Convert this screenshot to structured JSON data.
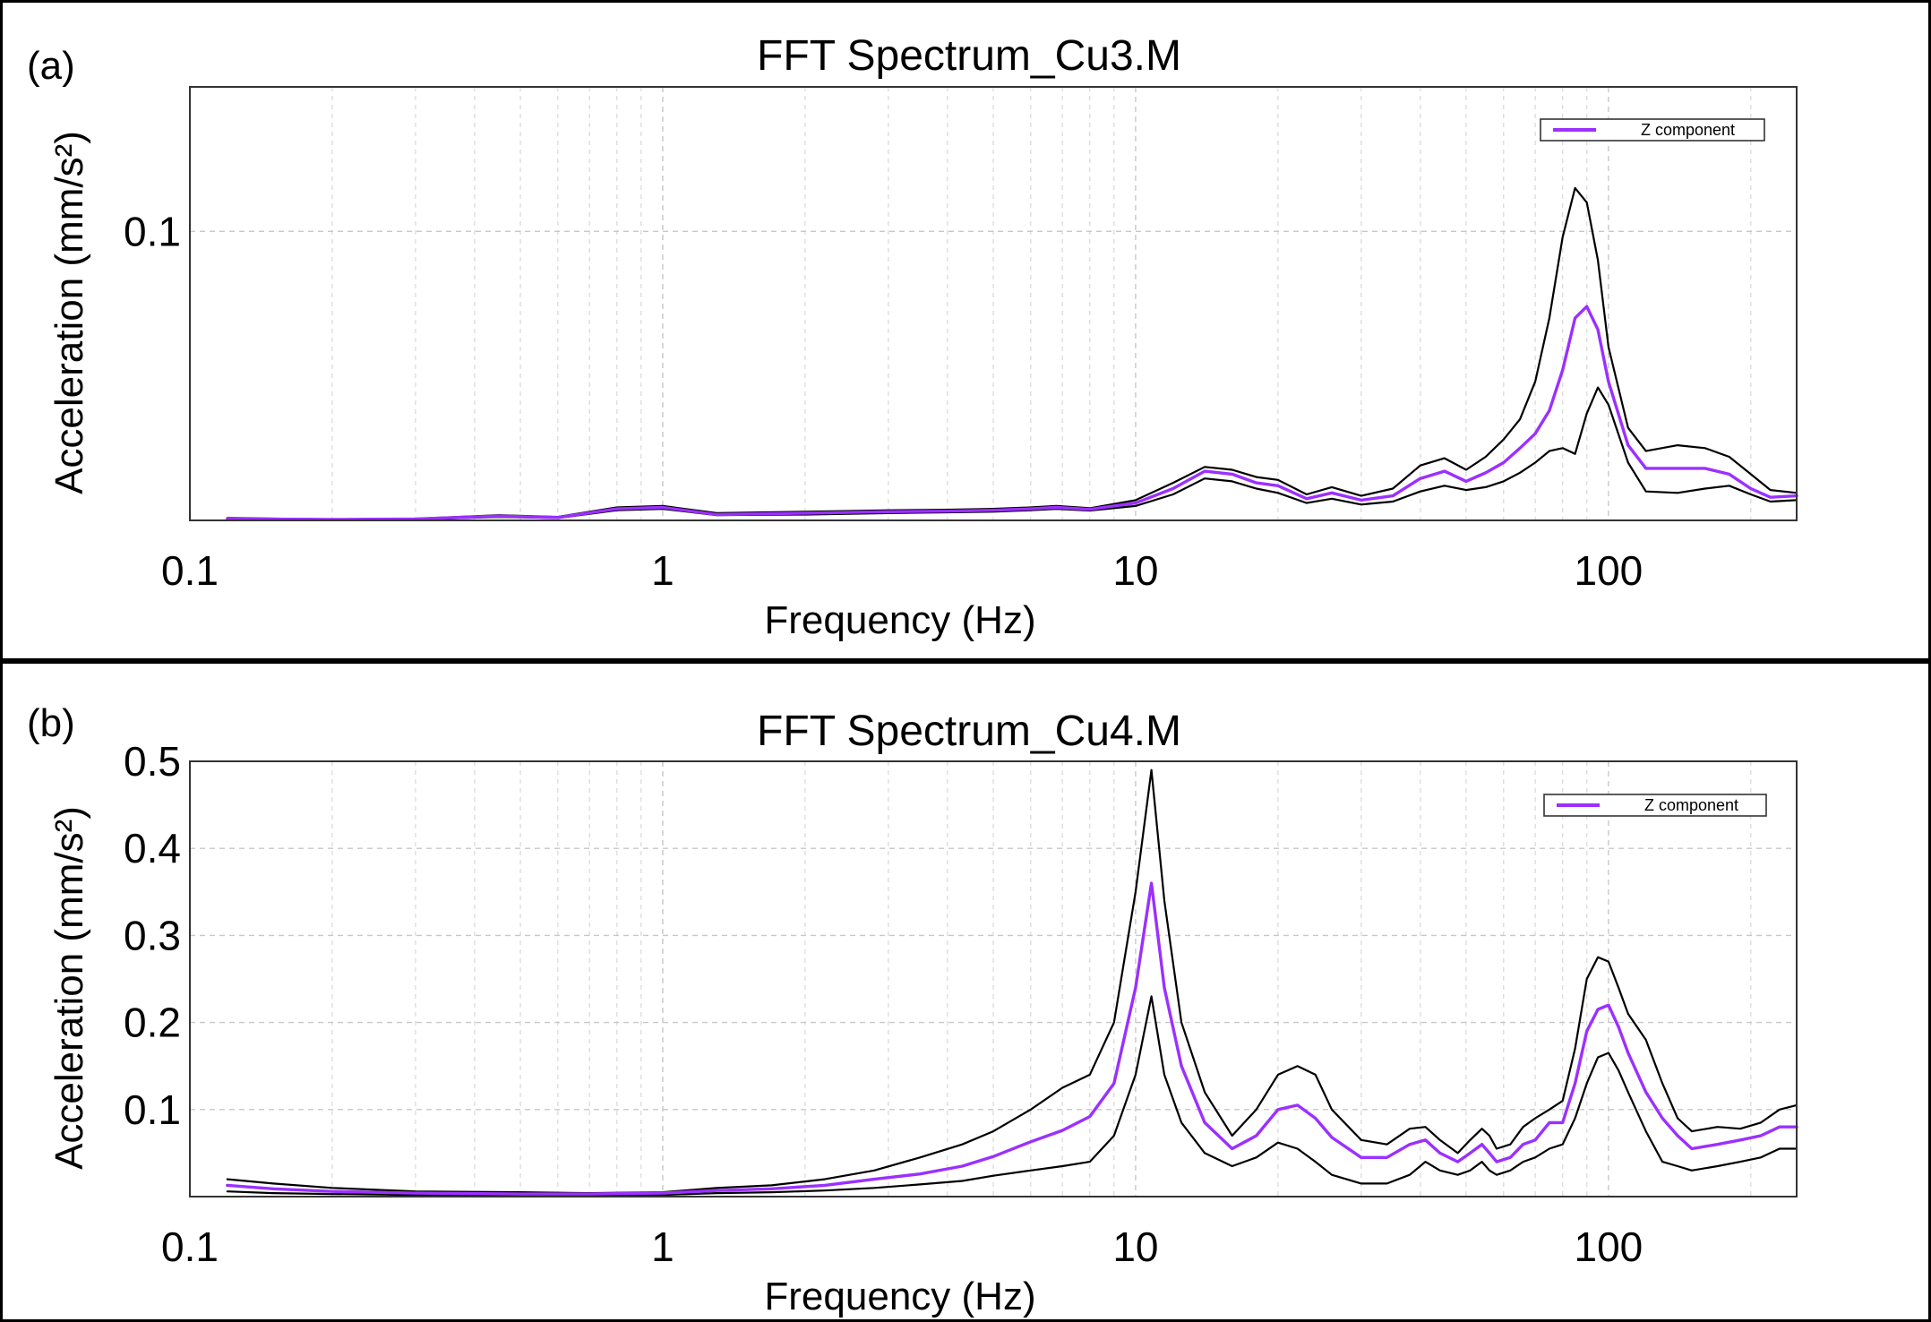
{
  "colors": {
    "mean": "#9b30ff",
    "bound": "#000000"
  },
  "chart_data": [
    {
      "type": "line",
      "panel_label": "(a)",
      "title": "FFT Spectrum_Cu3.M",
      "xlabel": "Frequency (Hz)",
      "ylabel": "Acceleration (mm/s²)",
      "xscale": "log",
      "xlim": [
        0.1,
        250
      ],
      "ylim": [
        0,
        0.15
      ],
      "xticks": [
        "0.1",
        "1",
        "10",
        "100"
      ],
      "yticks": [
        "0.1"
      ],
      "ytick_values": [
        0.1
      ],
      "legend": {
        "label": "Z component",
        "placement": "top-right"
      },
      "grid": true,
      "series": [
        {
          "name": "Z component",
          "role": "mean",
          "x": [
            0.12,
            0.2,
            0.3,
            0.45,
            0.6,
            0.8,
            1.0,
            1.3,
            2,
            3,
            4,
            5,
            6,
            6.8,
            8,
            10,
            12,
            14,
            16,
            18,
            20,
            23,
            26,
            30,
            35,
            40,
            45,
            50,
            55,
            60,
            65,
            70,
            75,
            80,
            85,
            90,
            95,
            100,
            110,
            120,
            140,
            160,
            180,
            200,
            220,
            250
          ],
          "values": [
            0.0005,
            0.0003,
            0.0005,
            0.0015,
            0.001,
            0.004,
            0.0045,
            0.002,
            0.0025,
            0.003,
            0.0032,
            0.0035,
            0.004,
            0.0045,
            0.0038,
            0.006,
            0.011,
            0.017,
            0.016,
            0.013,
            0.012,
            0.0075,
            0.0095,
            0.007,
            0.0085,
            0.0145,
            0.017,
            0.0135,
            0.0165,
            0.02,
            0.025,
            0.03,
            0.038,
            0.052,
            0.07,
            0.074,
            0.066,
            0.048,
            0.026,
            0.018,
            0.018,
            0.018,
            0.016,
            0.011,
            0.008,
            0.0085
          ]
        },
        {
          "name": "Upper bound",
          "role": "upper",
          "x": [
            0.12,
            0.2,
            0.3,
            0.45,
            0.6,
            0.8,
            1.0,
            1.3,
            2,
            3,
            4,
            5,
            6,
            6.8,
            8,
            10,
            12,
            14,
            16,
            18,
            20,
            23,
            26,
            30,
            35,
            40,
            45,
            50,
            55,
            60,
            65,
            70,
            75,
            80,
            85,
            90,
            95,
            100,
            110,
            120,
            140,
            160,
            180,
            200,
            220,
            250
          ],
          "values": [
            0.0008,
            0.0004,
            0.0006,
            0.0018,
            0.0012,
            0.0045,
            0.005,
            0.0025,
            0.003,
            0.0035,
            0.0037,
            0.004,
            0.0045,
            0.005,
            0.0042,
            0.007,
            0.013,
            0.0185,
            0.0175,
            0.015,
            0.014,
            0.009,
            0.0115,
            0.0085,
            0.011,
            0.019,
            0.0215,
            0.0175,
            0.022,
            0.028,
            0.035,
            0.048,
            0.07,
            0.098,
            0.115,
            0.11,
            0.09,
            0.06,
            0.032,
            0.024,
            0.026,
            0.025,
            0.022,
            0.016,
            0.0105,
            0.0095
          ]
        },
        {
          "name": "Lower bound",
          "role": "lower",
          "x": [
            0.12,
            0.2,
            0.3,
            0.45,
            0.6,
            0.8,
            1.0,
            1.3,
            2,
            3,
            4,
            5,
            6,
            6.8,
            8,
            10,
            12,
            14,
            16,
            18,
            20,
            23,
            26,
            30,
            35,
            40,
            45,
            50,
            55,
            60,
            65,
            70,
            75,
            80,
            85,
            90,
            95,
            100,
            110,
            120,
            140,
            160,
            180,
            200,
            220,
            250
          ],
          "values": [
            0.0003,
            0.0002,
            0.0003,
            0.0012,
            0.0008,
            0.0035,
            0.004,
            0.0018,
            0.002,
            0.0025,
            0.0028,
            0.003,
            0.0035,
            0.004,
            0.0034,
            0.005,
            0.009,
            0.0145,
            0.0135,
            0.011,
            0.0095,
            0.006,
            0.0075,
            0.0055,
            0.0065,
            0.01,
            0.012,
            0.0105,
            0.0115,
            0.0135,
            0.0165,
            0.02,
            0.024,
            0.025,
            0.023,
            0.037,
            0.046,
            0.04,
            0.02,
            0.01,
            0.0095,
            0.011,
            0.012,
            0.009,
            0.0065,
            0.007
          ]
        }
      ]
    },
    {
      "type": "line",
      "panel_label": "(b)",
      "title": "FFT Spectrum_Cu4.M",
      "xlabel": "Frequency (Hz)",
      "ylabel": "Acceleration (mm/s²)",
      "xscale": "log",
      "xlim": [
        0.1,
        250
      ],
      "ylim": [
        0,
        0.5
      ],
      "xticks": [
        "0.1",
        "1",
        "10",
        "100"
      ],
      "yticks": [
        "0.1",
        "0.2",
        "0.3",
        "0.4",
        "0.5"
      ],
      "ytick_values": [
        0.1,
        0.2,
        0.3,
        0.4,
        0.5
      ],
      "legend": {
        "label": "Z component",
        "placement": "top-right"
      },
      "grid": true,
      "series": [
        {
          "name": "Z component",
          "role": "mean",
          "x": [
            0.12,
            0.15,
            0.2,
            0.3,
            0.5,
            0.7,
            1.0,
            1.3,
            1.7,
            2.2,
            2.8,
            3.5,
            4.3,
            5,
            6,
            7,
            8,
            9,
            10,
            10.8,
            11.5,
            12.5,
            14,
            16,
            18,
            20,
            22,
            24,
            26,
            30,
            34,
            38,
            41,
            44,
            48,
            51,
            54,
            56,
            58,
            62,
            66,
            70,
            75,
            80,
            85,
            90,
            95,
            100,
            105,
            110,
            120,
            130,
            140,
            150,
            170,
            190,
            210,
            230,
            250
          ],
          "values": [
            0.013,
            0.009,
            0.006,
            0.004,
            0.003,
            0.003,
            0.004,
            0.007,
            0.009,
            0.013,
            0.02,
            0.026,
            0.035,
            0.046,
            0.063,
            0.076,
            0.092,
            0.13,
            0.24,
            0.36,
            0.24,
            0.15,
            0.085,
            0.055,
            0.07,
            0.1,
            0.105,
            0.09,
            0.068,
            0.045,
            0.045,
            0.06,
            0.065,
            0.05,
            0.04,
            0.05,
            0.06,
            0.05,
            0.04,
            0.045,
            0.06,
            0.065,
            0.085,
            0.085,
            0.13,
            0.19,
            0.215,
            0.22,
            0.195,
            0.165,
            0.12,
            0.09,
            0.07,
            0.055,
            0.06,
            0.065,
            0.07,
            0.08,
            0.08
          ]
        },
        {
          "name": "Upper bound",
          "role": "upper",
          "x": [
            0.12,
            0.15,
            0.2,
            0.3,
            0.5,
            0.7,
            1.0,
            1.3,
            1.7,
            2.2,
            2.8,
            3.5,
            4.3,
            5,
            6,
            7,
            8,
            9,
            10,
            10.8,
            11.5,
            12.5,
            14,
            16,
            18,
            20,
            22,
            24,
            26,
            30,
            34,
            38,
            41,
            44,
            48,
            51,
            54,
            56,
            58,
            62,
            66,
            70,
            75,
            80,
            85,
            90,
            95,
            100,
            105,
            110,
            120,
            130,
            140,
            150,
            170,
            190,
            210,
            230,
            250
          ],
          "values": [
            0.02,
            0.015,
            0.01,
            0.006,
            0.005,
            0.004,
            0.005,
            0.01,
            0.013,
            0.02,
            0.03,
            0.045,
            0.06,
            0.075,
            0.1,
            0.125,
            0.14,
            0.2,
            0.35,
            0.49,
            0.34,
            0.2,
            0.12,
            0.07,
            0.1,
            0.14,
            0.15,
            0.14,
            0.1,
            0.065,
            0.06,
            0.078,
            0.08,
            0.065,
            0.05,
            0.065,
            0.078,
            0.07,
            0.055,
            0.06,
            0.08,
            0.09,
            0.1,
            0.11,
            0.17,
            0.25,
            0.275,
            0.27,
            0.24,
            0.21,
            0.18,
            0.13,
            0.09,
            0.075,
            0.08,
            0.078,
            0.085,
            0.1,
            0.105
          ]
        },
        {
          "name": "Lower bound",
          "role": "lower",
          "x": [
            0.12,
            0.15,
            0.2,
            0.3,
            0.5,
            0.7,
            1.0,
            1.3,
            1.7,
            2.2,
            2.8,
            3.5,
            4.3,
            5,
            6,
            7,
            8,
            9,
            10,
            10.8,
            11.5,
            12.5,
            14,
            16,
            18,
            20,
            22,
            24,
            26,
            30,
            34,
            38,
            41,
            44,
            48,
            51,
            54,
            56,
            58,
            62,
            66,
            70,
            75,
            80,
            85,
            90,
            95,
            100,
            105,
            110,
            120,
            130,
            140,
            150,
            170,
            190,
            210,
            230,
            250
          ],
          "values": [
            0.006,
            0.004,
            0.003,
            0.002,
            0.001,
            0.001,
            0.002,
            0.004,
            0.005,
            0.007,
            0.01,
            0.014,
            0.018,
            0.024,
            0.03,
            0.035,
            0.04,
            0.07,
            0.14,
            0.23,
            0.14,
            0.085,
            0.05,
            0.035,
            0.045,
            0.062,
            0.055,
            0.04,
            0.025,
            0.015,
            0.015,
            0.025,
            0.04,
            0.03,
            0.025,
            0.03,
            0.04,
            0.03,
            0.025,
            0.03,
            0.04,
            0.045,
            0.055,
            0.06,
            0.09,
            0.13,
            0.16,
            0.165,
            0.145,
            0.12,
            0.075,
            0.04,
            0.035,
            0.03,
            0.035,
            0.04,
            0.045,
            0.055,
            0.055
          ]
        }
      ]
    }
  ]
}
